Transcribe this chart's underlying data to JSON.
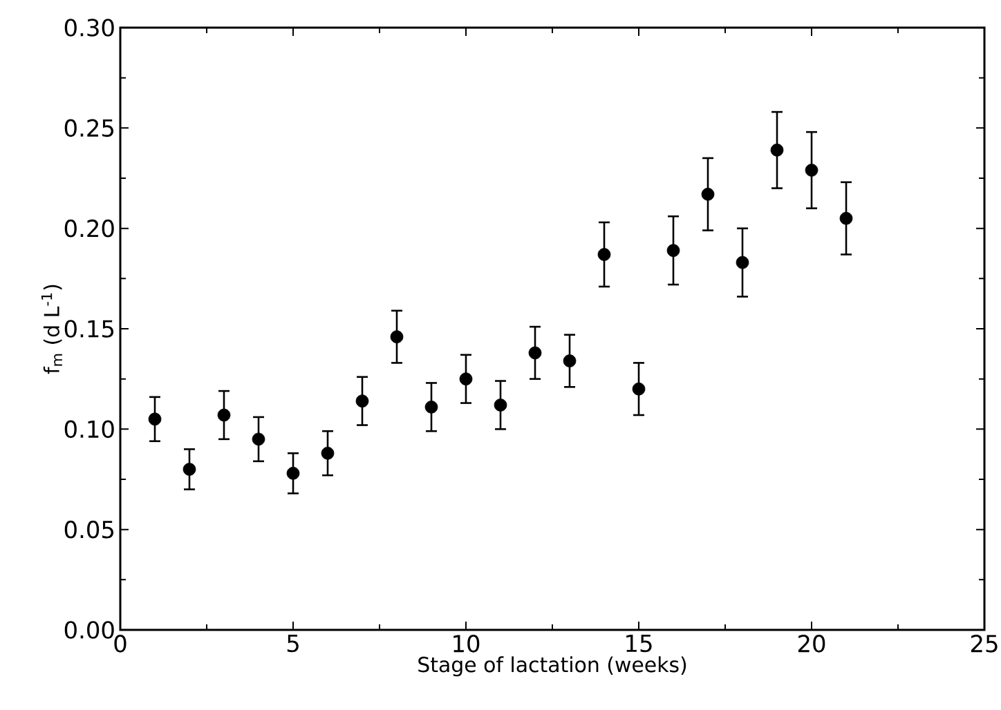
{
  "chart_data": {
    "type": "scatter",
    "xlabel": "Stage of lactation (weeks)",
    "ylabel": "f$_{m}$ (d L$^{-1}$)",
    "x": [
      1,
      2,
      3,
      4,
      5,
      6,
      7,
      8,
      9,
      10,
      11,
      12,
      13,
      14,
      15,
      16,
      17,
      18,
      19,
      20,
      21
    ],
    "values": [
      0.105,
      0.08,
      0.107,
      0.095,
      0.078,
      0.088,
      0.114,
      0.146,
      0.111,
      0.125,
      0.112,
      0.138,
      0.134,
      0.187,
      0.12,
      0.189,
      0.217,
      0.183,
      0.239,
      0.229,
      0.205
    ],
    "errors": [
      0.011,
      0.01,
      0.012,
      0.011,
      0.01,
      0.011,
      0.012,
      0.013,
      0.012,
      0.012,
      0.012,
      0.013,
      0.013,
      0.016,
      0.013,
      0.017,
      0.018,
      0.017,
      0.019,
      0.019,
      0.018
    ],
    "color": "#000000",
    "marker": "circle",
    "xlim": [
      0,
      25
    ],
    "xticks": [
      0,
      5,
      10,
      15,
      20,
      25
    ],
    "ylim": [
      0,
      0.3
    ],
    "yticks": [
      {
        "value": 0,
        "label": "0.00"
      },
      {
        "value": 0.05,
        "label": "0.05"
      },
      {
        "value": 0.1,
        "label": "0.10"
      },
      {
        "value": 0.15,
        "label": "0.15"
      },
      {
        "value": 0.2,
        "label": "0.20"
      },
      {
        "value": 0.25,
        "label": "0.25"
      },
      {
        "value": 0.3,
        "label": "0.30"
      }
    ]
  }
}
